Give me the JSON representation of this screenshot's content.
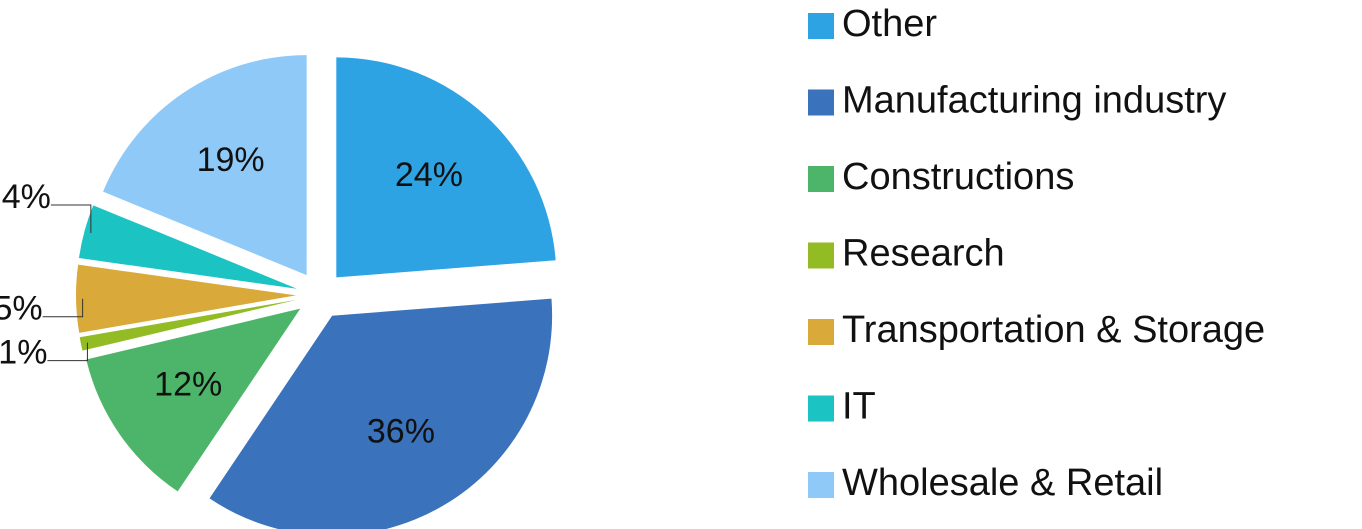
{
  "chart_data": {
    "type": "pie",
    "categories": [
      "Other",
      "Manufacturing industry",
      "Constructions",
      "Research",
      "Transportation & Storage",
      "IT",
      "Wholesale & Retail"
    ],
    "values": [
      24,
      36,
      12,
      1,
      5,
      4,
      19
    ],
    "value_labels": [
      "24%",
      "36%",
      "12%",
      "1%",
      "5%",
      "4%",
      "19%"
    ],
    "colors": [
      "#2EA3E3",
      "#3A72BC",
      "#4DB56A",
      "#93BC24",
      "#D9A93A",
      "#1BC3C3",
      "#8EC9F8"
    ],
    "legend": "right"
  }
}
